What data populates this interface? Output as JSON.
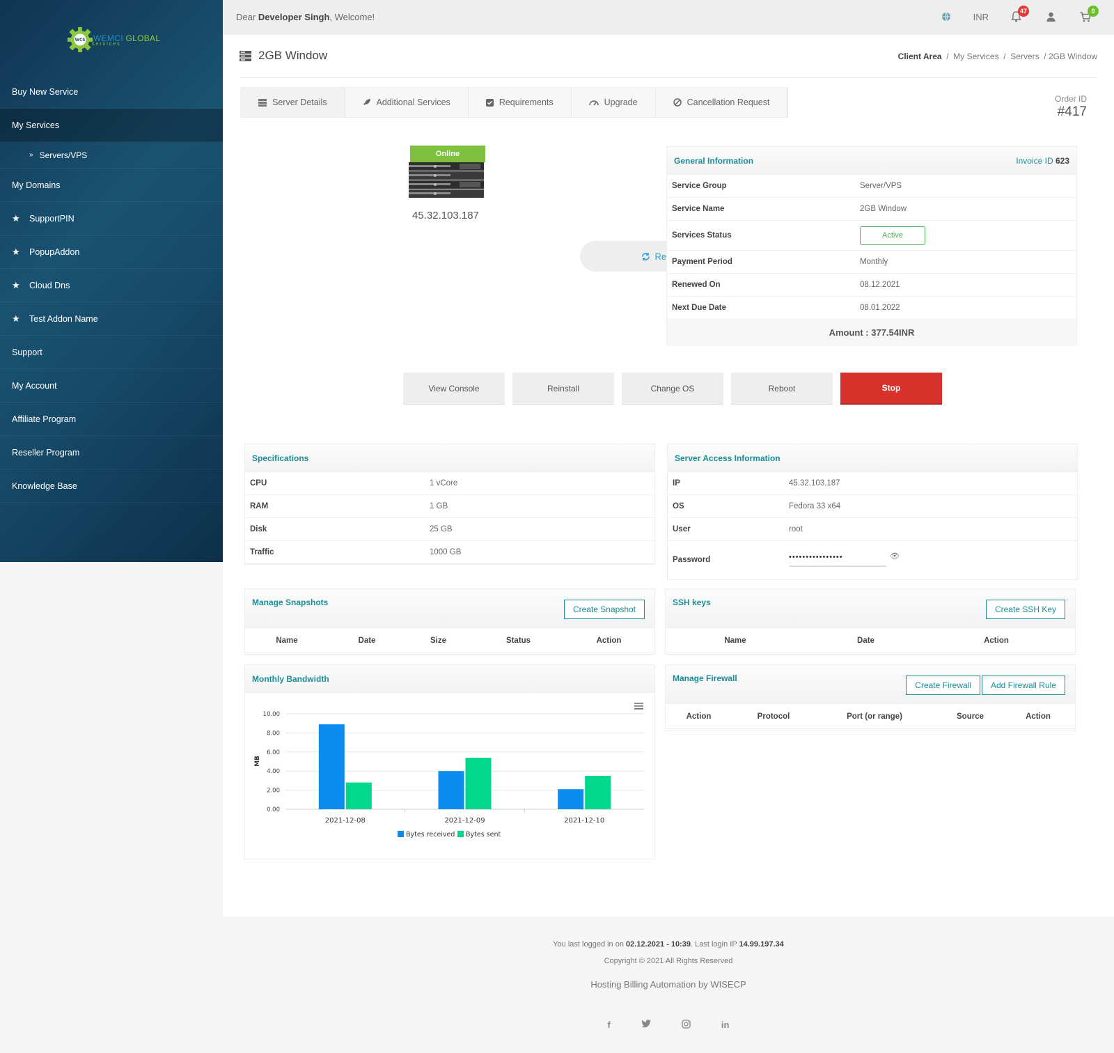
{
  "sidebar": {
    "logo_brand_left": "WEMCI",
    "logo_brand_right": "GLOBAL",
    "logo_sub": "services",
    "logo_mark": "WCS",
    "items": [
      {
        "label": "Buy New Service"
      },
      {
        "label": "My Services"
      },
      {
        "label": "Servers/VPS"
      },
      {
        "label": "My Domains"
      },
      {
        "label": "SupportPIN"
      },
      {
        "label": "PopupAddon"
      },
      {
        "label": "Cloud Dns"
      },
      {
        "label": "Test Addon Name"
      },
      {
        "label": "Support"
      },
      {
        "label": "My Account"
      },
      {
        "label": "Affiliate Program"
      },
      {
        "label": "Reseller Program"
      },
      {
        "label": "Knowledge Base"
      }
    ]
  },
  "topbar": {
    "greeting_prefix": "Dear",
    "user_name": "Developer Singh",
    "greeting_suffix": ", Welcome!",
    "currency": "INR",
    "notifications_count": "47",
    "cart_count": "0"
  },
  "page": {
    "title": "2GB Window",
    "breadcrumb": {
      "root": "Client Area",
      "sep": "/",
      "b1": "My Services",
      "b2": "Servers",
      "b3": "/ 2GB Window"
    }
  },
  "tabs": [
    {
      "label": "Server Details"
    },
    {
      "label": "Additional Services"
    },
    {
      "label": "Requirements"
    },
    {
      "label": "Upgrade"
    },
    {
      "label": "Cancellation Request"
    }
  ],
  "order": {
    "label": "Order ID",
    "value": "#417"
  },
  "server": {
    "status": "Online",
    "ip": "45.32.103.187",
    "renew_label": "Renew Now"
  },
  "general_info": {
    "title": "General Information",
    "invoice_label": "Invoice ID",
    "invoice_id": "623",
    "rows": [
      {
        "k": "Service Group",
        "v": "Server/VPS"
      },
      {
        "k": "Service Name",
        "v": "2GB Window"
      },
      {
        "k": "Services Status",
        "v": "Active"
      },
      {
        "k": "Payment Period",
        "v": "Monthly"
      },
      {
        "k": "Renewed On",
        "v": "08.12.2021"
      },
      {
        "k": "Next Due Date",
        "v": "08.01.2022"
      }
    ],
    "amount": "Amount : 377.54INR"
  },
  "actions": {
    "view_console": "View Console",
    "reinstall": "Reinstall",
    "change_os": "Change OS",
    "reboot": "Reboot",
    "stop": "Stop"
  },
  "specifications": {
    "title": "Specifications",
    "rows": [
      {
        "k": "CPU",
        "v": "1 vCore"
      },
      {
        "k": "RAM",
        "v": "1 GB"
      },
      {
        "k": "Disk",
        "v": "25 GB"
      },
      {
        "k": "Traffic",
        "v": "1000 GB"
      }
    ]
  },
  "server_access": {
    "title": "Server Access Information",
    "rows": [
      {
        "k": "IP",
        "v": "45.32.103.187"
      },
      {
        "k": "OS",
        "v": "Fedora 33 x64"
      },
      {
        "k": "User",
        "v": "root"
      }
    ],
    "password_label": "Password",
    "password_mask": "••••••••••••••••"
  },
  "snapshots": {
    "title": "Manage Snapshots",
    "button": "Create Snapshot",
    "columns": [
      "Name",
      "Date",
      "Size",
      "Status",
      "Action"
    ]
  },
  "ssh": {
    "title": "SSH keys",
    "button": "Create SSH Key",
    "columns": [
      "Name",
      "Date",
      "Action"
    ]
  },
  "bandwidth": {
    "title": "Monthly Bandwidth"
  },
  "firewall": {
    "title": "Manage Firewall",
    "create_button": "Create Firewall",
    "add_rule_button": "Add Firewall Rule",
    "columns": [
      "Action",
      "Protocol",
      "Port (or range)",
      "Source",
      "Action"
    ]
  },
  "chart_data": {
    "type": "bar",
    "categories": [
      "2021-12-08",
      "2021-12-09",
      "2021-12-10"
    ],
    "series": [
      {
        "name": "Bytes received",
        "values": [
          8.9,
          4.0,
          2.1
        ],
        "color": "#0a8cf0"
      },
      {
        "name": "Bytes sent",
        "values": [
          2.8,
          5.4,
          3.5
        ],
        "color": "#00d98b"
      }
    ],
    "ylabel": "MB",
    "ylim": [
      0,
      10
    ],
    "yticks": [
      "0.00",
      "2.00",
      "4.00",
      "6.00",
      "8.00",
      "10.00"
    ],
    "grid": true,
    "legend": "bottom"
  },
  "footer": {
    "login_prefix": "You last logged in on",
    "login_time": "02.12.2021 - 10:39",
    "login_ip_prefix": ". Last login IP",
    "login_ip": "14.99.197.34",
    "copyright": "Copyright © 2021 All Rights Reserved",
    "powered": "Hosting Billing Automation by WISECP"
  }
}
